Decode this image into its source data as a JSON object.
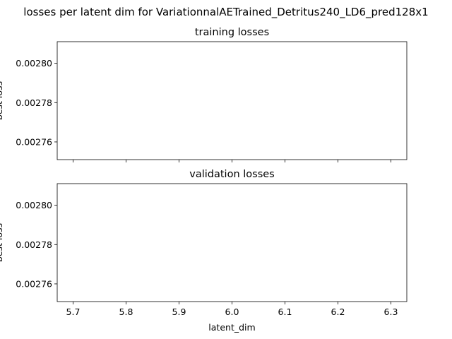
{
  "figure": {
    "suptitle": "losses per latent dim for VariationnalAETrained_Detritus240_LD6_pred128x1"
  },
  "chart_data": [
    {
      "type": "line",
      "title": "training losses",
      "xlabel": "",
      "ylabel": "best loss",
      "x": [],
      "series": [],
      "xlim": [
        5.67,
        6.33
      ],
      "ylim": [
        0.002751,
        0.002811
      ],
      "xticks": [
        5.7,
        5.8,
        5.9,
        6.0,
        6.1,
        6.2,
        6.3
      ],
      "xtick_labels": [],
      "yticks": [
        0.00276,
        0.00278,
        0.0028
      ],
      "ytick_labels": [
        "0.00276",
        "0.00278",
        "0.00280"
      ],
      "grid": false
    },
    {
      "type": "line",
      "title": "validation losses",
      "xlabel": "latent_dim",
      "ylabel": "best loss",
      "x": [],
      "series": [],
      "xlim": [
        5.67,
        6.33
      ],
      "ylim": [
        0.002751,
        0.002811
      ],
      "xticks": [
        5.7,
        5.8,
        5.9,
        6.0,
        6.1,
        6.2,
        6.3
      ],
      "xtick_labels": [
        "5.7",
        "5.8",
        "5.9",
        "6.0",
        "6.1",
        "6.2",
        "6.3"
      ],
      "yticks": [
        0.00276,
        0.00278,
        0.0028
      ],
      "ytick_labels": [
        "0.00276",
        "0.00278",
        "0.00280"
      ],
      "grid": false
    }
  ]
}
